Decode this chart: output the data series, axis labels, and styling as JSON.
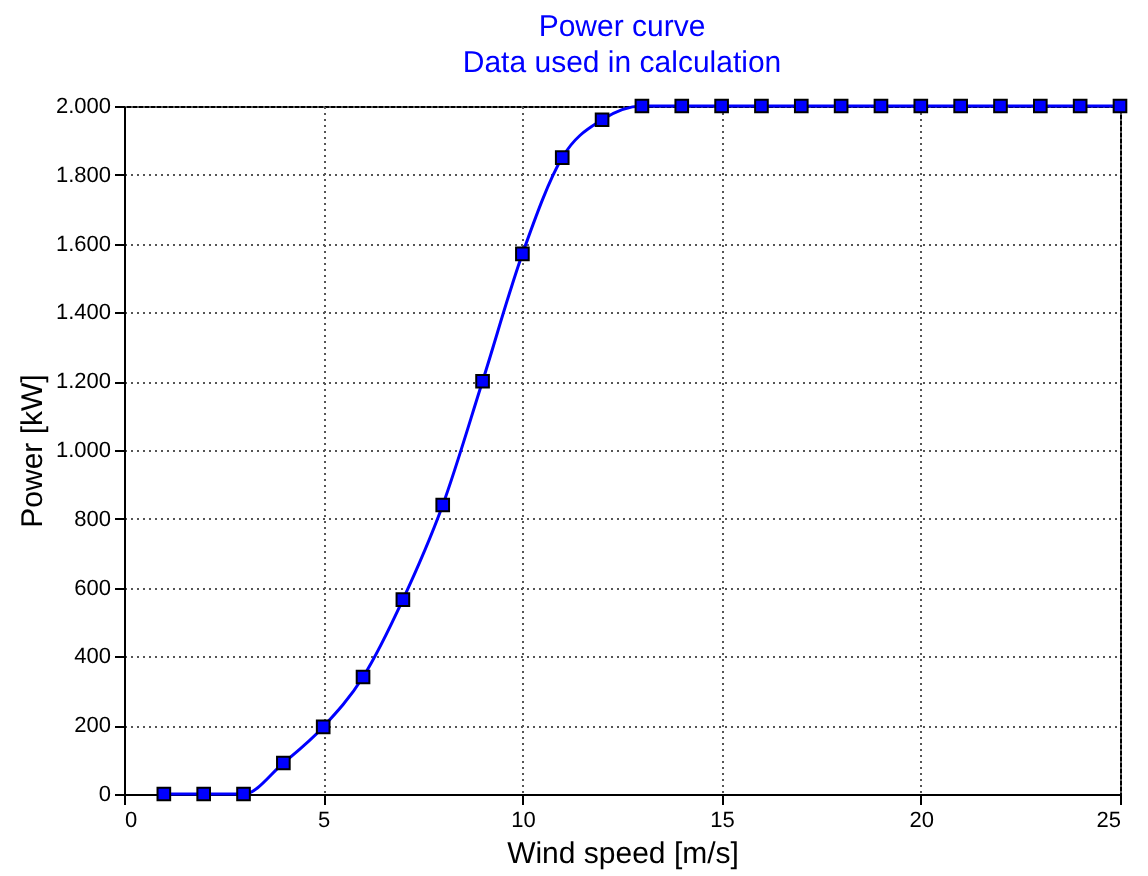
{
  "chart_data": {
    "type": "line",
    "title": "Power curve",
    "subtitle": "Data used in calculation",
    "xlabel": "Wind speed [m/s]",
    "ylabel": "Power [kW]",
    "x": [
      1,
      2,
      3,
      4,
      5,
      6,
      7,
      8,
      9,
      10,
      11,
      12,
      13,
      14,
      15,
      16,
      17,
      18,
      19,
      20,
      21,
      22,
      23,
      24,
      25
    ],
    "series": [
      {
        "color": "#0000ff",
        "values": [
          0,
          0,
          0,
          90,
          195,
          340,
          565,
          840,
          1200,
          1570,
          1850,
          1960,
          2000,
          2000,
          2000,
          2000,
          2000,
          2000,
          2000,
          2000,
          2000,
          2000,
          2000,
          2000,
          2000
        ]
      }
    ],
    "xlim": [
      0,
      25
    ],
    "xticks": [
      0,
      5,
      10,
      15,
      20,
      25
    ],
    "ylim": [
      0,
      2000
    ],
    "yticks": [
      0,
      200,
      400,
      600,
      800,
      {
        "value": 1000,
        "label": "1.000"
      },
      {
        "value": 1200,
        "label": "1.200"
      },
      {
        "value": 1400,
        "label": "1.400"
      },
      {
        "value": 1600,
        "label": "1.600"
      },
      {
        "value": 1800,
        "label": "1.800"
      },
      {
        "value": 2000,
        "label": "2.000"
      }
    ],
    "grid": true,
    "marker": "square",
    "line_style": "solid"
  }
}
